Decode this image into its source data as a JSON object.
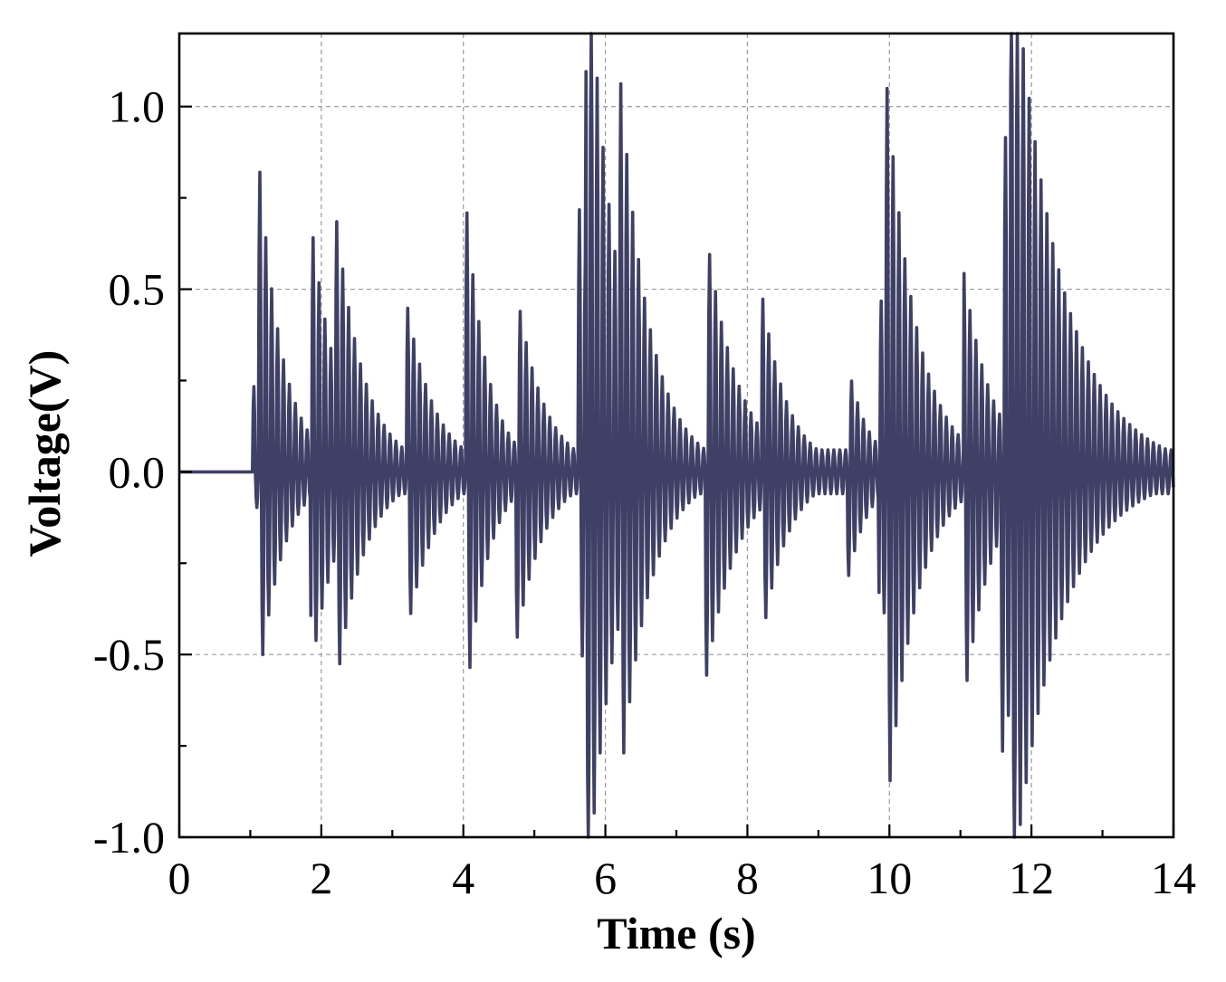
{
  "chart_data": {
    "type": "line",
    "title": "",
    "xlabel": "Time (s)",
    "ylabel": "Voltage(V)",
    "xlim": [
      0,
      14
    ],
    "ylim": [
      -1.0,
      1.2
    ],
    "x_ticks": [
      0,
      2,
      4,
      6,
      8,
      10,
      12,
      14
    ],
    "x_tick_labels": [
      "0",
      "2",
      "4",
      "6",
      "8",
      "10",
      "12",
      "14"
    ],
    "x_minor_step": 1,
    "y_ticks": [
      -1.0,
      -0.5,
      0.0,
      0.5,
      1.0
    ],
    "y_tick_labels": [
      "-1.0",
      "-0.5",
      "0.0",
      "0.5",
      "1.0"
    ],
    "y_minor_step": 0.25,
    "grid": true,
    "legend": "none",
    "line_color": "#3f4066",
    "oscillation_frequency_hz": 12,
    "baseline": {
      "x_start": 0,
      "x_end": 1.03,
      "y": 0.0
    },
    "series": [
      {
        "impulse_events": [
          {
            "t": 1.03,
            "pos_peak": 0.25,
            "neg_peak": -0.12,
            "decay_s": 0.6
          },
          {
            "t": 1.12,
            "pos_peak": 0.67,
            "neg_peak": -0.5,
            "decay_s": 0.7
          },
          {
            "t": 1.85,
            "pos_peak": 0.6,
            "neg_peak": -0.49,
            "decay_s": 0.8
          },
          {
            "t": 2.2,
            "pos_peak": 0.43,
            "neg_peak": -0.38,
            "decay_s": 0.8
          },
          {
            "t": 3.2,
            "pos_peak": 0.41,
            "neg_peak": -0.4,
            "decay_s": 0.8
          },
          {
            "t": 4.03,
            "pos_peak": 0.7,
            "neg_peak": -0.6,
            "decay_s": 0.6
          },
          {
            "t": 4.73,
            "pos_peak": 0.45,
            "neg_peak": -0.42,
            "decay_s": 0.8
          },
          {
            "t": 5.62,
            "pos_peak": 0.69,
            "neg_peak": -0.53,
            "decay_s": 0.8
          },
          {
            "t": 5.72,
            "pos_peak": 1.0,
            "neg_peak": -0.79,
            "decay_s": 0.9
          },
          {
            "t": 6.2,
            "pos_peak": 0.59,
            "neg_peak": -0.48,
            "decay_s": 0.8
          },
          {
            "t": 7.4,
            "pos_peak": 0.63,
            "neg_peak": -0.54,
            "decay_s": 0.9
          },
          {
            "t": 8.2,
            "pos_peak": 0.38,
            "neg_peak": -0.37,
            "decay_s": 0.7
          },
          {
            "t": 9.4,
            "pos_peak": 0.29,
            "neg_peak": -0.29,
            "decay_s": 0.6
          },
          {
            "t": 9.85,
            "pos_peak": 0.44,
            "neg_peak": -0.4,
            "decay_s": 0.8
          },
          {
            "t": 9.95,
            "pos_peak": 0.7,
            "neg_peak": -0.61,
            "decay_s": 0.9
          },
          {
            "t": 11.05,
            "pos_peak": 0.46,
            "neg_peak": -0.56,
            "decay_s": 0.8
          },
          {
            "t": 11.58,
            "pos_peak": 0.85,
            "neg_peak": -0.61,
            "decay_s": 1.4
          },
          {
            "t": 11.7,
            "pos_peak": 0.7,
            "neg_peak": -0.56,
            "decay_s": 1.4
          }
        ]
      }
    ]
  }
}
